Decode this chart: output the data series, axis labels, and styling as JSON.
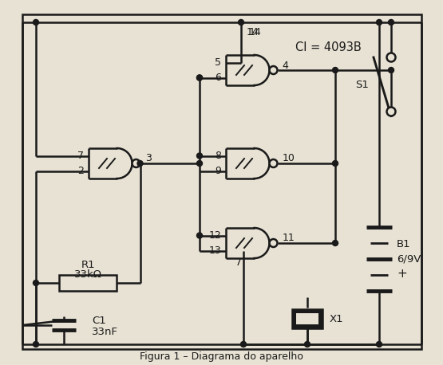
{
  "bg_color": "#e8e2d4",
  "lc": "#1a1a1a",
  "border": [
    28,
    18,
    528,
    438
  ],
  "ci_label": "CI = 4093B",
  "r1_line1": "R1",
  "r1_line2": "33kΩ",
  "c1_line1": "C1",
  "c1_line2": "33nF",
  "b1_line1": "B1",
  "b1_line2": "6/9V",
  "b1_plus": "+",
  "x1_label": "X1",
  "s1_label": "S1",
  "caption": "Figura 1 – Diagrama do aparelho"
}
